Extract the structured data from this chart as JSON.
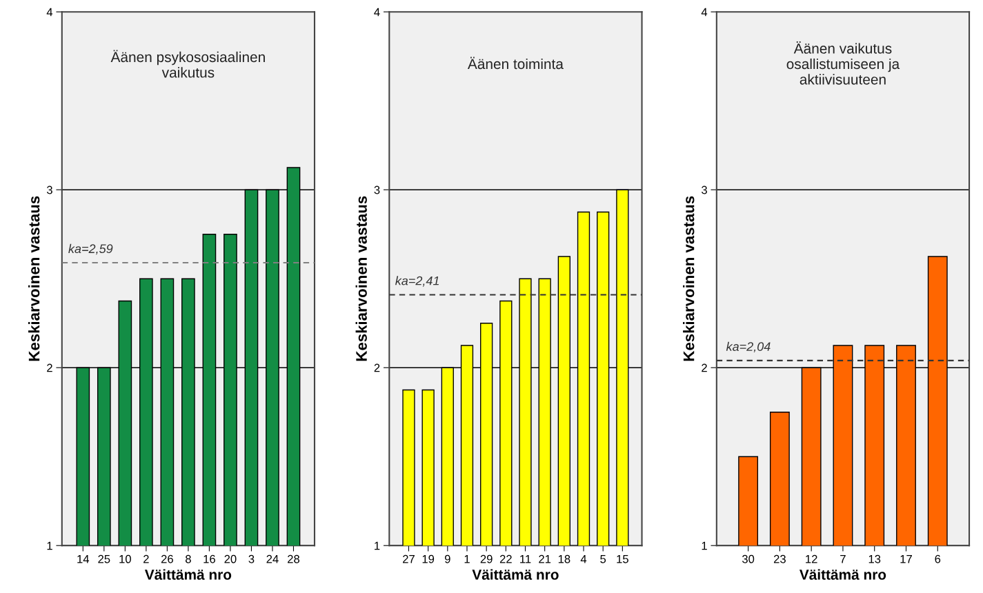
{
  "chart_data": [
    {
      "type": "bar",
      "title": "Äänen psykososiaalinen\nvaikutus",
      "xlabel": "Väittämä nro",
      "ylabel": "Keskiarvoinen vastaus",
      "categories": [
        "14",
        "25",
        "10",
        "2",
        "26",
        "8",
        "16",
        "20",
        "3",
        "24",
        "28"
      ],
      "values": [
        2.0,
        2.0,
        2.375,
        2.5,
        2.5,
        2.5,
        2.75,
        2.75,
        3.0,
        3.0,
        3.125
      ],
      "color": "#138d45",
      "ylim": [
        1,
        4
      ],
      "yticks": [
        1,
        2,
        3,
        4
      ],
      "grid": "y",
      "ref_lines": [
        {
          "axis": "y",
          "value": 2.59,
          "label": "ka=2,59",
          "color": "#808080",
          "line_style": "dashed"
        }
      ]
    },
    {
      "type": "bar",
      "title": "Äänen toiminta",
      "xlabel": "Väittämä nro",
      "ylabel": "Keskiarvoinen vastaus",
      "categories": [
        "27",
        "19",
        "9",
        "1",
        "29",
        "22",
        "11",
        "21",
        "18",
        "4",
        "5",
        "15"
      ],
      "values": [
        1.875,
        1.875,
        2.0,
        2.125,
        2.25,
        2.375,
        2.5,
        2.5,
        2.625,
        2.875,
        2.875,
        3.0
      ],
      "color": "#ffff00",
      "ylim": [
        1,
        4
      ],
      "yticks": [
        1,
        2,
        3,
        4
      ],
      "grid": "y",
      "ref_lines": [
        {
          "axis": "y",
          "value": 2.41,
          "label": "ka=2,41",
          "color": "#333333",
          "line_style": "dashed"
        }
      ]
    },
    {
      "type": "bar",
      "title": "Äänen vaikutus\nosallistumiseen ja\naktiivisuuteen",
      "xlabel": "Väittämä nro",
      "ylabel": "Keskiarvoinen vastaus",
      "categories": [
        "30",
        "23",
        "12",
        "7",
        "13",
        "17",
        "6"
      ],
      "values": [
        1.5,
        1.75,
        2.0,
        2.125,
        2.125,
        2.125,
        2.625
      ],
      "color": "#ff6600",
      "ylim": [
        1,
        4
      ],
      "yticks": [
        1,
        2,
        3,
        4
      ],
      "grid": "y",
      "ref_lines": [
        {
          "axis": "y",
          "value": 2.04,
          "label": "ka=2,04",
          "color": "#333333",
          "line_style": "dashed"
        }
      ]
    }
  ]
}
